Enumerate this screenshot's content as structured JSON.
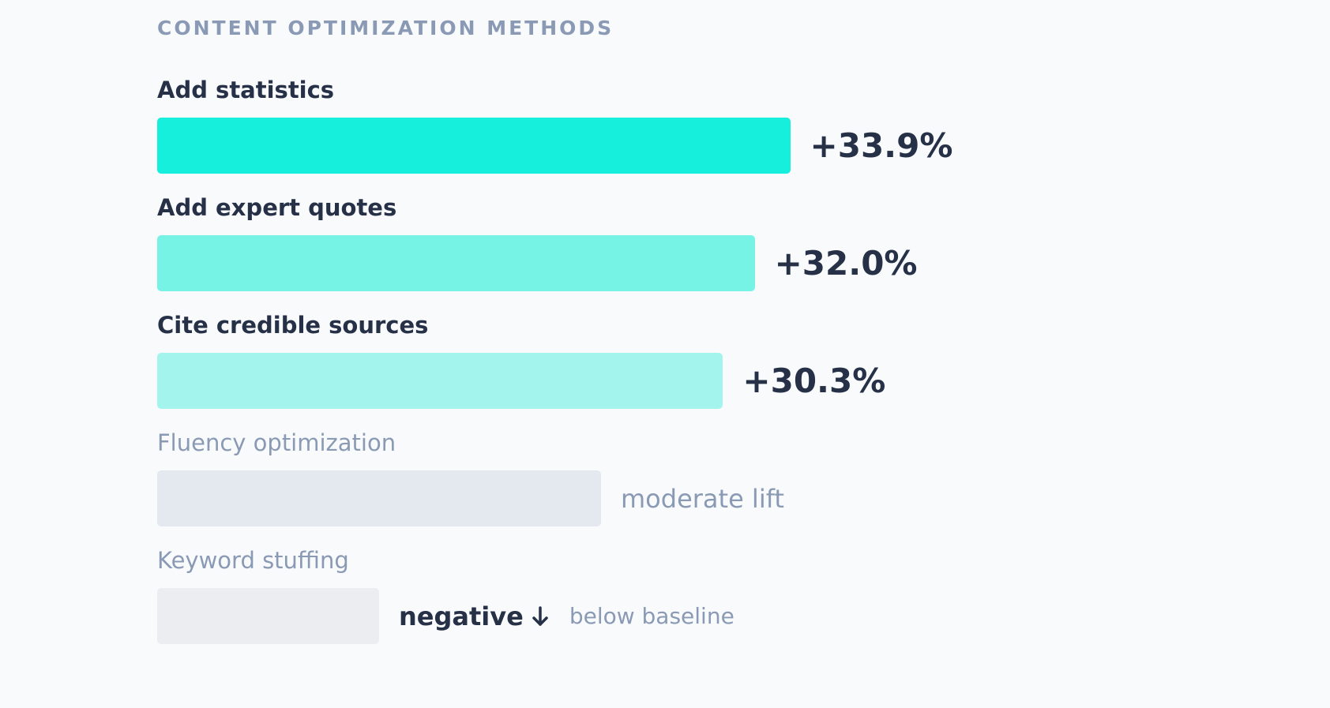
{
  "chart_data": {
    "type": "bar",
    "orientation": "horizontal",
    "title": "CONTENT OPTIMIZATION METHODS",
    "categories": [
      "Add statistics",
      "Add expert quotes",
      "Cite credible sources",
      "Fluency optimization",
      "Keyword stuffing"
    ],
    "values": [
      33.9,
      32.0,
      30.3,
      null,
      null
    ],
    "value_labels": [
      "+33.9%",
      "+32.0%",
      "+30.3%",
      "moderate lift",
      "negative"
    ],
    "xlim": [
      0,
      45
    ],
    "annotations": {
      "keyword_stuffing_note": "below baseline"
    },
    "colors": [
      "#15efdc",
      "#77f3e6",
      "#a3f4ed",
      "#e4e8ef",
      "#ebedf1"
    ],
    "grid": false,
    "legend": "none"
  }
}
